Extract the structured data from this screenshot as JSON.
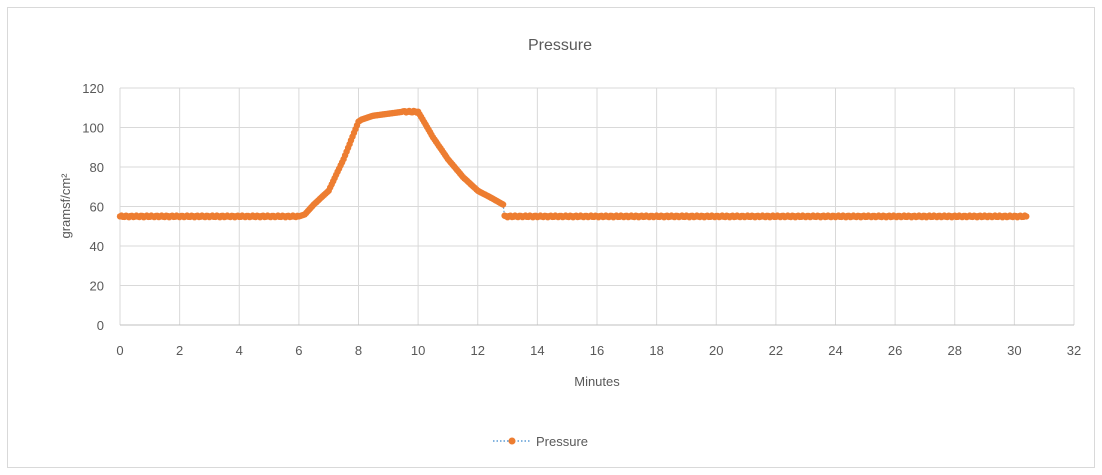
{
  "chart_data": {
    "type": "line",
    "title": "Pressure",
    "xlabel": "Minutes",
    "ylabel": "gramsf/cm²",
    "xlim": [
      0,
      32
    ],
    "ylim": [
      0,
      120
    ],
    "x_ticks": [
      0,
      2,
      4,
      6,
      8,
      10,
      12,
      14,
      16,
      18,
      20,
      22,
      24,
      26,
      28,
      30,
      32
    ],
    "y_ticks": [
      0,
      20,
      40,
      60,
      80,
      100,
      120
    ],
    "grid": true,
    "legend_position": "bottom",
    "series": [
      {
        "name": "Pressure",
        "color": "#ed7d31",
        "marker": "circle",
        "line_style": "dotted",
        "line_color": "#5b9bd5",
        "x": [
          0,
          0.5,
          1,
          1.5,
          2,
          2.5,
          3,
          3.5,
          4,
          4.5,
          5,
          5.5,
          6,
          6.2,
          6.5,
          7,
          7.5,
          8,
          8.1,
          8.5,
          9,
          9.5,
          10,
          10.5,
          11,
          11.5,
          12,
          12.5,
          12.85,
          12.9,
          13.5,
          14,
          15,
          16,
          17,
          18,
          19,
          20,
          21,
          22,
          23,
          24,
          25,
          26,
          27,
          28,
          29,
          30,
          30.4
        ],
        "y": [
          55,
          55,
          55,
          55,
          55,
          55,
          55,
          55,
          55,
          55,
          55,
          55,
          55,
          56,
          61,
          68,
          84,
          103,
          104,
          106,
          107,
          108,
          108,
          95,
          84,
          75,
          68,
          64,
          61,
          55,
          55,
          55,
          55,
          55,
          55,
          55,
          55,
          55,
          55,
          55,
          55,
          55,
          55,
          55,
          55,
          55,
          55,
          55,
          55
        ]
      }
    ]
  }
}
